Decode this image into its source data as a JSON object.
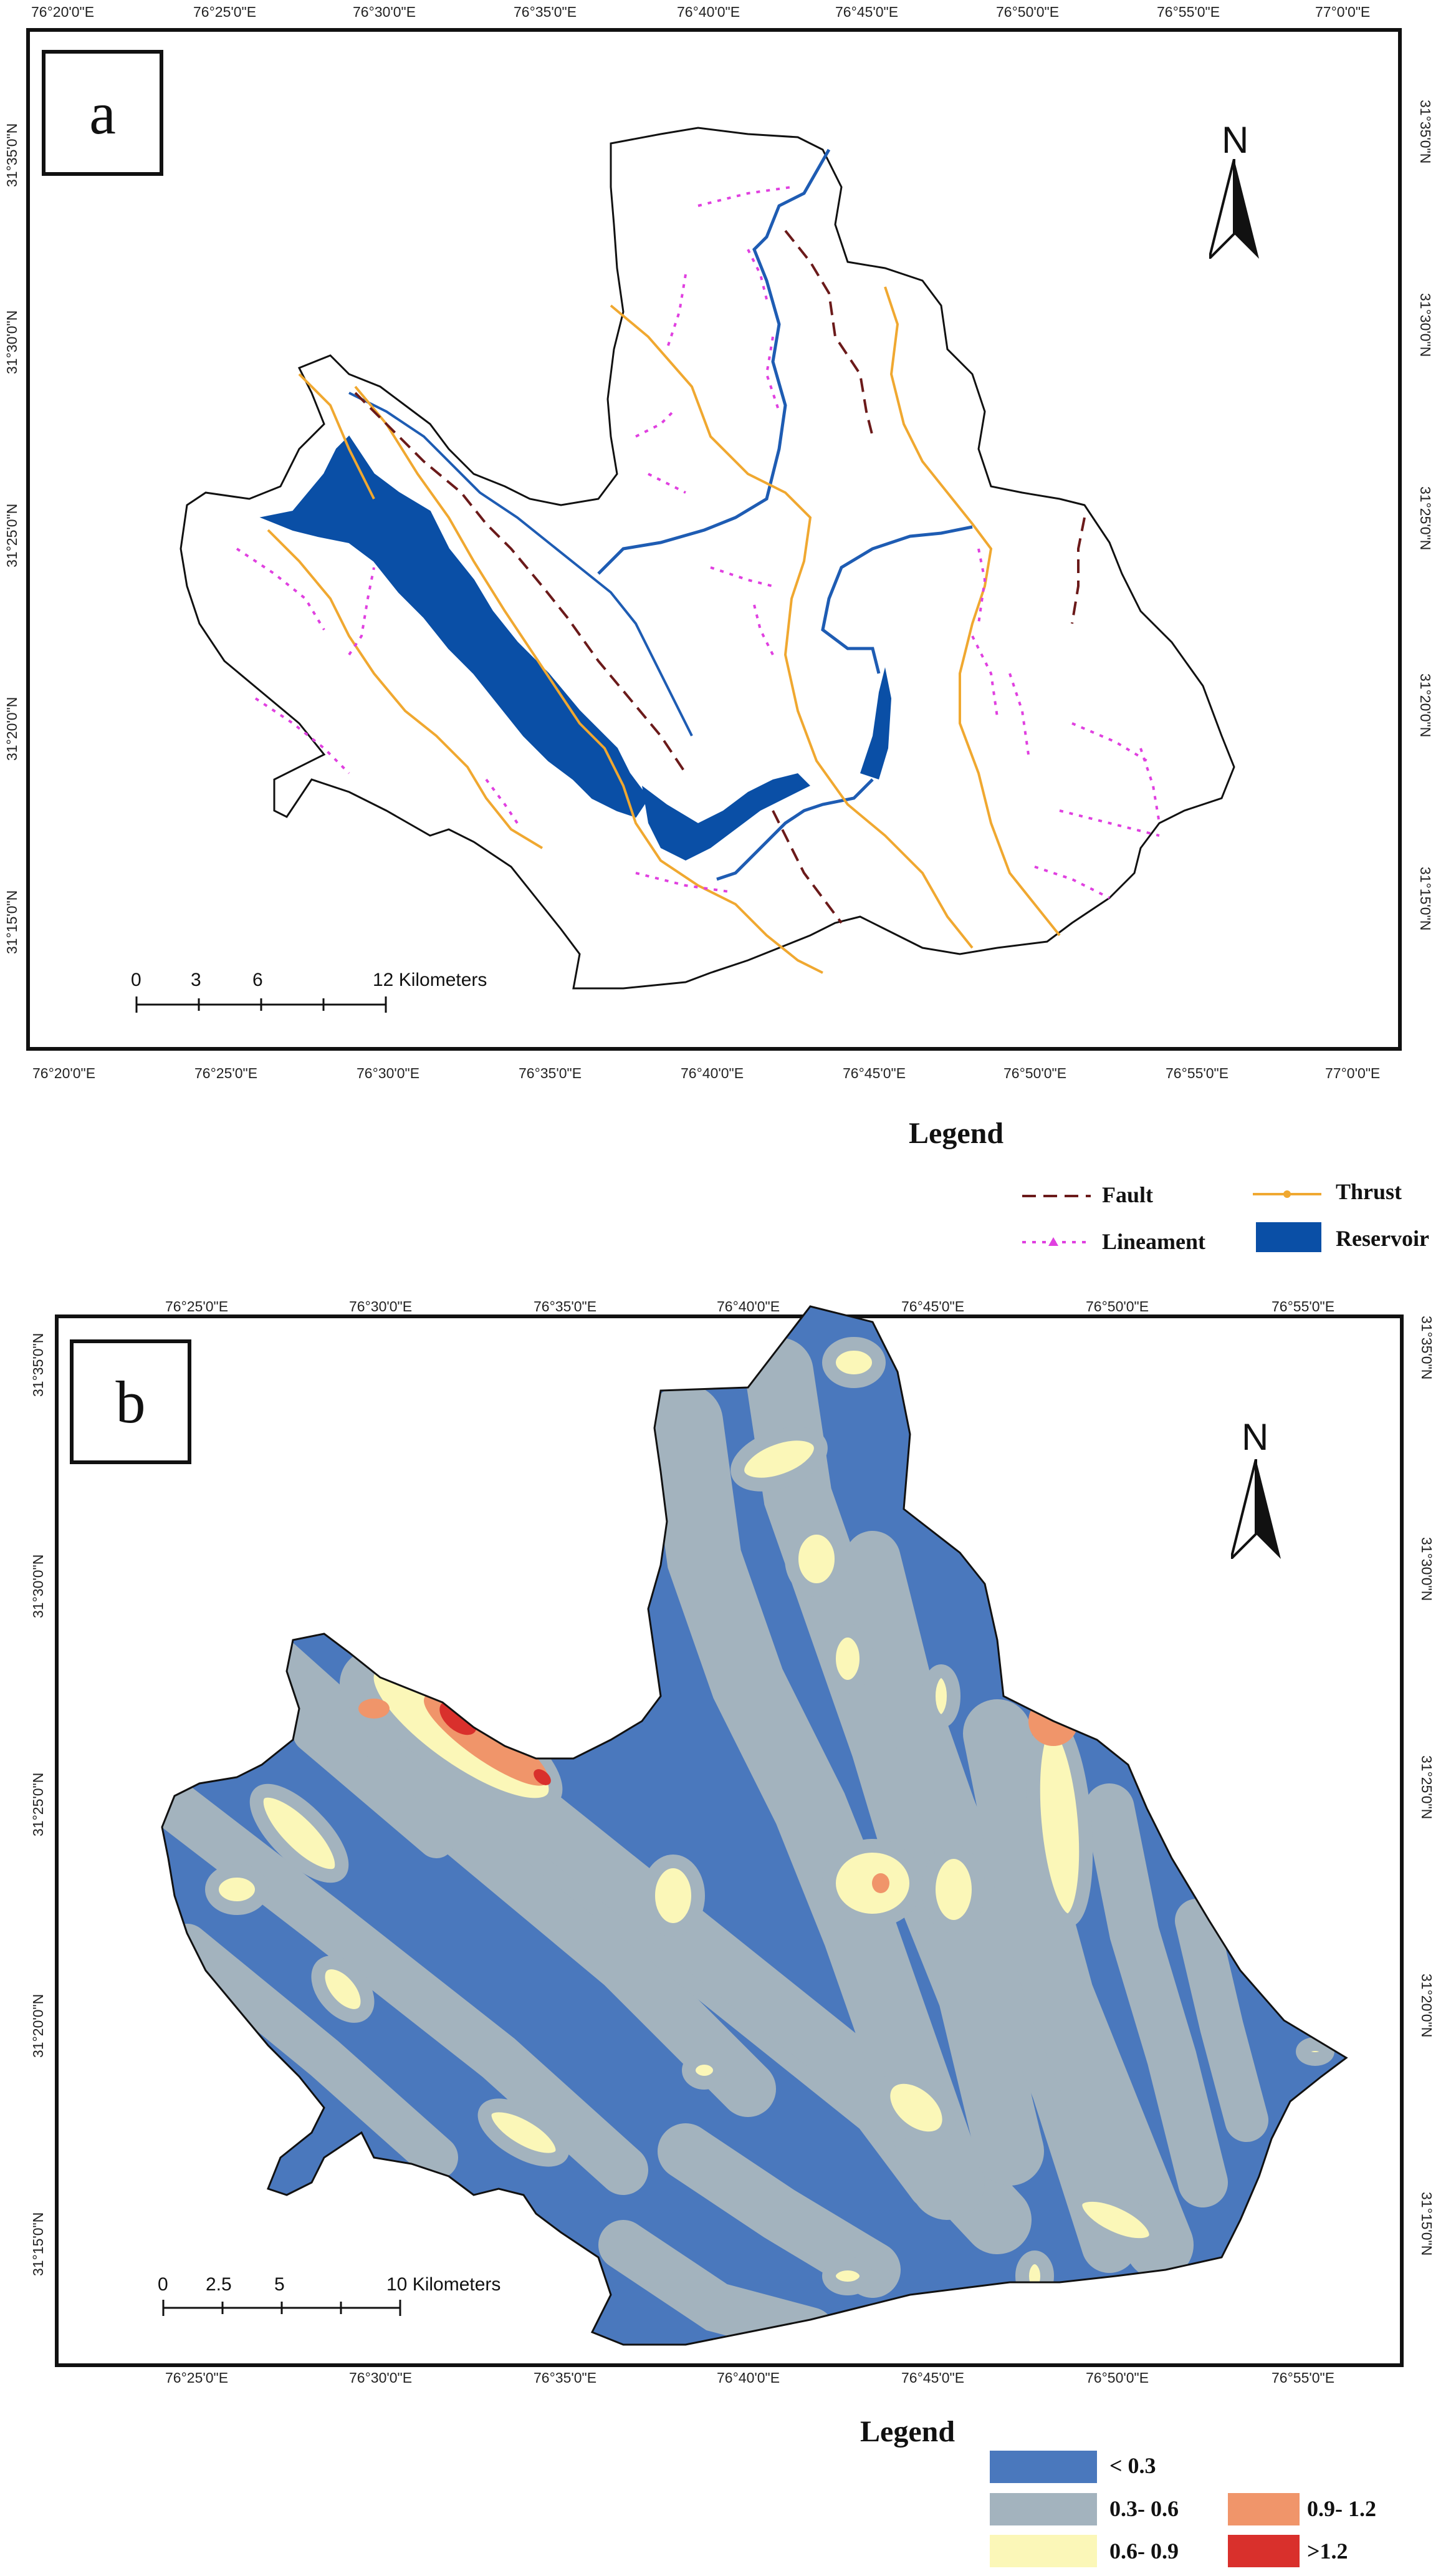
{
  "panel_a": {
    "label": "a",
    "north": "N",
    "lon_ticks": [
      "76°20'0\"E",
      "76°25'0\"E",
      "76°30'0\"E",
      "76°35'0\"E",
      "76°40'0\"E",
      "76°45'0\"E",
      "76°50'0\"E",
      "76°55'0\"E",
      "77°0'0\"E"
    ],
    "lat_ticks": [
      "31°35'0\"N",
      "31°30'0\"N",
      "31°25'0\"N",
      "31°20'0\"N",
      "31°15'0\"N"
    ],
    "scale": {
      "labels": [
        "0",
        "3",
        "6",
        "12 Kilometers"
      ]
    },
    "legend": {
      "title": "Legend",
      "items": [
        {
          "label": "Fault",
          "color": "#6b1a1a"
        },
        {
          "label": "Thrust",
          "color": "#f0a830"
        },
        {
          "label": "Lineament",
          "color": "#e040e0"
        },
        {
          "label": "Reservoir",
          "color": "#0a4fa6"
        }
      ]
    }
  },
  "panel_b": {
    "label": "b",
    "north": "N",
    "lon_ticks": [
      "76°25'0\"E",
      "76°30'0\"E",
      "76°35'0\"E",
      "76°40'0\"E",
      "76°45'0\"E",
      "76°50'0\"E",
      "76°55'0\"E"
    ],
    "lat_ticks": [
      "31°35'0\"N",
      "31°30'0\"N",
      "31°25'0\"N",
      "31°20'0\"N",
      "31°15'0\"N"
    ],
    "scale": {
      "labels": [
        "0",
        "2.5",
        "5",
        "10 Kilometers"
      ]
    },
    "legend": {
      "title": "Legend",
      "classes": [
        {
          "label": "< 0.3",
          "color": "#4a78bd"
        },
        {
          "label": "0.3- 0.6",
          "color": "#a3b3be"
        },
        {
          "label": "0.6- 0.9",
          "color": "#fbf7b8"
        },
        {
          "label": "0.9- 1.2",
          "color": "#f0956a"
        },
        {
          "label": ">1.2",
          "color": "#d9302c"
        }
      ]
    }
  }
}
